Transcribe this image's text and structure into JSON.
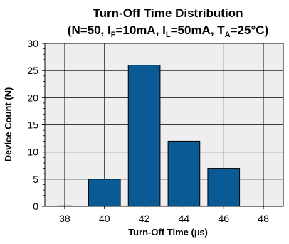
{
  "chart_data": {
    "type": "bar",
    "title": "Turn-Off Time Distribution",
    "subtitle": {
      "open": "(N=50, I",
      "sub1": "F",
      "mid1": "=10mA, I",
      "sub2": "L",
      "mid2": "=50mA, T",
      "sub3": "A",
      "close": "=25°C)"
    },
    "xlabel": {
      "text": "Turn-Off Time (",
      "mu": "µ",
      "unit": "s)"
    },
    "ylabel": "Device Count (N)",
    "x_ticks": [
      38,
      40,
      42,
      44,
      46,
      48
    ],
    "y_ticks": [
      0,
      5,
      10,
      15,
      20,
      25,
      30
    ],
    "xlim": [
      37,
      49
    ],
    "ylim": [
      0,
      30
    ],
    "bar_width": 1.6,
    "x": [
      40,
      42,
      44,
      46
    ],
    "values": [
      5,
      26,
      12,
      7
    ],
    "grid": true,
    "colors": {
      "bar": "#0a5a96",
      "plot_bg": "#eeeeee",
      "grid": "#000000"
    }
  }
}
